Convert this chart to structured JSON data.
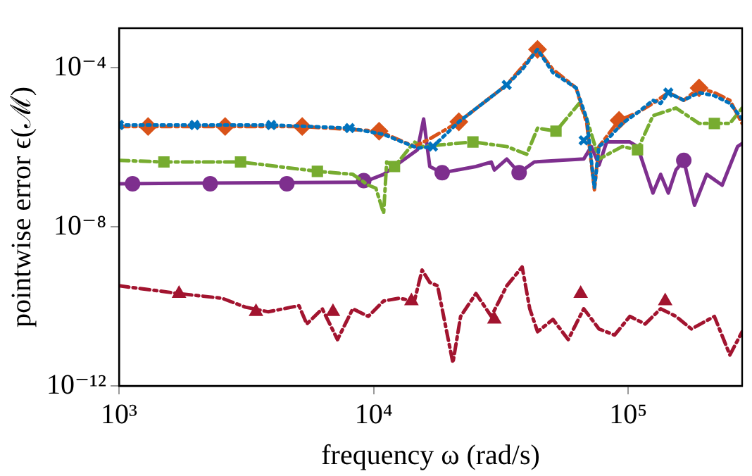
{
  "chart_data": {
    "type": "line",
    "xlabel": "frequency ω (rad/s)",
    "ylabel": "pointwise error ϵ(ℳ)",
    "log": "xy",
    "grid": false,
    "legend": false,
    "xlim": [
      1000,
      280000
    ],
    "xticks": [
      {
        "value": 1000,
        "label": "10³"
      },
      {
        "value": 10000,
        "label": "10⁴"
      },
      {
        "value": 100000,
        "label": "10⁵"
      }
    ],
    "ylim": [
      1e-12,
      0.001
    ],
    "yticks": [
      {
        "value": 1e-12,
        "label": "10⁻¹²"
      },
      {
        "value": 1e-08,
        "label": "10⁻⁸"
      },
      {
        "value": 0.0001,
        "label": "10⁻⁴"
      }
    ],
    "series": [
      {
        "type": "line",
        "color": "#0072bd",
        "line_style": "dotted",
        "marker": "none",
        "x": [
          1000,
          1980,
          3960,
          8050,
          10900,
          14900,
          17100,
          21600,
          33300,
          38300,
          44000,
          50600,
          62400,
          68700,
          73600,
          76700,
          82200,
          94600,
          108700,
          125000,
          134000,
          143600,
          165200,
          189700,
          217800,
          250600,
          280000
        ],
        "values": [
          3.66e-06,
          3.66e-06,
          3.66e-06,
          3.06e-06,
          2.14e-06,
          9.6e-07,
          1.05e-06,
          4.4e-06,
          3.74e-05,
          9.1e-05,
          0.000292,
          7.6e-05,
          3.13e-05,
          5.2e-06,
          9.4e-08,
          1.05e-06,
          1.5e-06,
          4e-06,
          7.5e-06,
          1.53e-05,
          1.28e-05,
          2.39e-05,
          1.53e-05,
          2.39e-05,
          2e-05,
          1.28e-05,
          5.2e-06
        ]
      },
      {
        "type": "scatter",
        "color": "#0072bd",
        "marker": "cross",
        "x": [
          1000,
          1980,
          3960,
          8050,
          17100,
          33300,
          66800,
          143600
        ],
        "values": [
          3.66e-06,
          3.66e-06,
          3.66e-06,
          3.06e-06,
          1.05e-06,
          3.74e-05,
          1.5e-06,
          2.39e-05
        ]
      },
      {
        "type": "line",
        "color": "#d95319",
        "line_style": "dashed",
        "marker": "none",
        "x": [
          1000,
          1300,
          2610,
          5240,
          10500,
          14450,
          16600,
          21600,
          33300,
          44000,
          50600,
          62400,
          68700,
          73600,
          76700,
          92000,
          108700,
          125000,
          143600,
          165200,
          189700,
          217800,
          250600,
          280000
        ],
        "values": [
          3.35e-06,
          3.35e-06,
          3.35e-06,
          3.35e-06,
          2.56e-06,
          1.05e-06,
          1.64e-06,
          4.4e-06,
          3.74e-05,
          0.000292,
          9.1e-05,
          3.13e-05,
          4e-06,
          8.6e-08,
          1.05e-06,
          4.8e-06,
          7.5e-06,
          1.28e-05,
          2.39e-05,
          1.53e-05,
          3.13e-05,
          2.39e-05,
          1.53e-05,
          4e-06
        ]
      },
      {
        "type": "scatter",
        "color": "#d95319",
        "marker": "diamond",
        "x": [
          1300,
          2610,
          5240,
          10500,
          21600,
          44000,
          92000,
          189700
        ],
        "values": [
          3.35e-06,
          3.35e-06,
          3.35e-06,
          2.56e-06,
          4.4e-06,
          0.000292,
          4.8e-06,
          3.13e-05
        ]
      },
      {
        "type": "line",
        "color": "#77ac30",
        "line_style": "dashed",
        "marker": "none",
        "x": [
          1000,
          1500,
          3000,
          6010,
          8280,
          9530,
          10200,
          10940,
          11250,
          12070,
          14450,
          15490,
          24530,
          33330,
          39920,
          44030,
          52000,
          64120,
          68710,
          76740,
          94620,
          108700,
          125000,
          153900,
          189700,
          217800,
          250600,
          280000
        ],
        "values": [
          4.7e-07,
          4.3e-07,
          4.3e-07,
          2.5e-07,
          2.1e-07,
          1.12e-07,
          9.4e-08,
          2.2e-08,
          4.3e-07,
          3.3e-07,
          1.37e-06,
          1.05e-06,
          1.37e-06,
          1.05e-06,
          6.7e-07,
          3.06e-06,
          2.56e-06,
          1.28e-05,
          5.2e-06,
          5.1e-07,
          1.05e-06,
          8.7e-07,
          6.25e-06,
          9.8e-06,
          4e-06,
          4e-06,
          4e-06,
          9.8e-06
        ]
      },
      {
        "type": "scatter",
        "color": "#77ac30",
        "marker": "square",
        "x": [
          1500,
          3000,
          6010,
          12070,
          24530,
          52000,
          108700,
          217800
        ],
        "values": [
          4.3e-07,
          4.3e-07,
          2.5e-07,
          3.3e-07,
          1.37e-06,
          2.56e-06,
          8.7e-07,
          4e-06
        ]
      },
      {
        "type": "line",
        "color": "#7e2f8e",
        "line_style": "solid",
        "marker": "none",
        "x": [
          1000,
          9140,
          10940,
          14860,
          15710,
          16610,
          18580,
          25220,
          28970,
          29790,
          33330,
          37260,
          42760,
          66830,
          71620,
          76740,
          82220,
          101400,
          108700,
          125000,
          134000,
          143600,
          153900,
          165200,
          182000,
          203200,
          233700,
          268700,
          280000
        ],
        "values": [
          1.22e-07,
          1.34e-07,
          2.1e-07,
          8.7e-07,
          5.2e-06,
          3.3e-07,
          2.3e-07,
          3.3e-07,
          4.3e-07,
          2.7e-07,
          5.1e-07,
          2.3e-07,
          4.3e-07,
          5.1e-07,
          1.05e-06,
          3.6e-07,
          1.37e-06,
          1.37e-06,
          1.05e-06,
          7.1e-08,
          2.1e-07,
          7.1e-08,
          2.7e-07,
          4.7e-07,
          3.5e-08,
          2.1e-07,
          1.12e-07,
          1.05e-06,
          1.25e-06
        ]
      },
      {
        "type": "scatter",
        "color": "#7e2f8e",
        "marker": "circle",
        "x": [
          1130,
          2280,
          4560,
          9140,
          18580,
          37260,
          165200
        ],
        "values": [
          1.22e-07,
          1.22e-07,
          1.22e-07,
          1.46e-07,
          2.3e-07,
          2.3e-07,
          4.7e-07
        ]
      },
      {
        "type": "line",
        "color": "#a2142f",
        "line_style": "dashed",
        "marker": "none",
        "x": [
          1000,
          1720,
          2540,
          3130,
          3860,
          5090,
          5460,
          6280,
          7210,
          8280,
          9530,
          10940,
          12590,
          14450,
          15490,
          16610,
          17820,
          20470,
          21950,
          25220,
          28970,
          33330,
          38300,
          41020,
          44030,
          50580,
          58080,
          66830,
          76740,
          88310,
          101400,
          116500,
          134000,
          153900,
          177000,
          217800,
          250600,
          280000
        ],
        "values": [
          3.3e-10,
          2.1e-10,
          1.6e-10,
          9.6e-11,
          7.3e-11,
          1.04e-10,
          3.6e-11,
          8.7e-11,
          1.46e-11,
          8.7e-11,
          5.6e-11,
          1.37e-10,
          1.6e-10,
          1.37e-10,
          8.2e-10,
          4e-10,
          3.3e-10,
          3.8e-12,
          5.6e-11,
          2.1e-10,
          5.6e-11,
          3.3e-10,
          9.8e-10,
          8.7e-11,
          2.3e-11,
          4.7e-11,
          1.46e-11,
          8.7e-11,
          2.7e-11,
          1.9e-11,
          5.6e-11,
          3.6e-11,
          8.7e-11,
          5.6e-11,
          2.7e-11,
          5.6e-11,
          6e-12,
          2.3e-11
        ]
      },
      {
        "type": "scatter",
        "color": "#a2142f",
        "marker": "triangle",
        "x": [
          1720,
          3450,
          6920,
          14070,
          29790,
          65010,
          139600
        ],
        "values": [
          2.1e-10,
          7.3e-11,
          7.3e-11,
          1.37e-10,
          4.7e-11,
          2.1e-10,
          1.37e-10
        ]
      }
    ]
  }
}
